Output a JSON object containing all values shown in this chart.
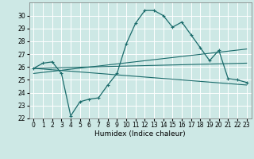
{
  "xlabel": "Humidex (Indice chaleur)",
  "ylabel": "",
  "background_color": "#cde8e5",
  "grid_color": "#ffffff",
  "line_color": "#1a6b6b",
  "xlim": [
    -0.5,
    23.5
  ],
  "ylim": [
    22,
    31
  ],
  "xticks": [
    0,
    1,
    2,
    3,
    4,
    5,
    6,
    7,
    8,
    9,
    10,
    11,
    12,
    13,
    14,
    15,
    16,
    17,
    18,
    19,
    20,
    21,
    22,
    23
  ],
  "yticks": [
    22,
    23,
    24,
    25,
    26,
    27,
    28,
    29,
    30
  ],
  "main_x": [
    0,
    1,
    2,
    3,
    4,
    5,
    6,
    7,
    8,
    9,
    10,
    11,
    12,
    13,
    14,
    15,
    16,
    17,
    18,
    19,
    20,
    21,
    22,
    23
  ],
  "main_y": [
    25.9,
    26.3,
    26.4,
    25.5,
    22.2,
    23.3,
    23.5,
    23.6,
    24.6,
    25.5,
    27.8,
    29.4,
    30.4,
    30.4,
    30.0,
    29.1,
    29.5,
    28.5,
    27.5,
    26.5,
    27.3,
    25.1,
    25.0,
    24.8
  ],
  "line1_y": [
    25.5,
    27.4
  ],
  "line2_y": [
    25.9,
    26.3
  ],
  "line3_y": [
    25.9,
    24.6
  ]
}
